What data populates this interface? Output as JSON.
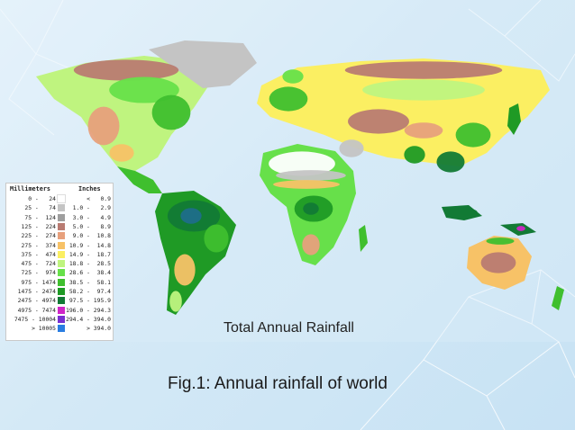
{
  "map": {
    "title": "Total Annual Rainfall",
    "ocean_color": "#ddeef8"
  },
  "legend": {
    "mm_header": "Millimeters",
    "in_header": "Inches",
    "rows": [
      {
        "mm": "0 -   24",
        "inches": "<   0.9",
        "color": "#ffffff"
      },
      {
        "mm": "25 -   74",
        "inches": "1.0 -   2.9",
        "color": "#c4c4c4"
      },
      {
        "mm": "75 -  124",
        "inches": "3.0 -   4.9",
        "color": "#9e9e9e"
      },
      {
        "mm": "125 -  224",
        "inches": "5.0 -   8.9",
        "color": "#b97b72"
      },
      {
        "mm": "225 -  274",
        "inches": "9.0 -  10.8",
        "color": "#e7a07c"
      },
      {
        "mm": "275 -  374",
        "inches": "10.9 -  14.8",
        "color": "#f7c267"
      },
      {
        "mm": "375 -  474",
        "inches": "14.9 -  18.7",
        "color": "#fbef62"
      },
      {
        "mm": "475 -  724",
        "inches": "18.8 -  28.5",
        "color": "#bff47f"
      },
      {
        "mm": "725 -  974",
        "inches": "28.6 -  38.4",
        "color": "#67e04a"
      },
      {
        "mm": "975 - 1474",
        "inches": "38.5 -  58.1",
        "color": "#3fbf2e"
      },
      {
        "mm": "1475 - 2474",
        "inches": "58.2 -  97.4",
        "color": "#1f9a25"
      },
      {
        "mm": "2475 - 4974",
        "inches": "97.5 - 195.9",
        "color": "#127a35"
      },
      {
        "mm": "4975 - 7474",
        "inches": "196.0 - 294.3",
        "color": "#d125c8"
      },
      {
        "mm": "7475 - 10004",
        "inches": "294.4 - 394.0",
        "color": "#7a2fd0"
      },
      {
        "mm": "> 10005",
        "inches": "> 394.0",
        "color": "#2a7de1"
      }
    ]
  },
  "caption": "Fig.1: Annual rainfall of world"
}
